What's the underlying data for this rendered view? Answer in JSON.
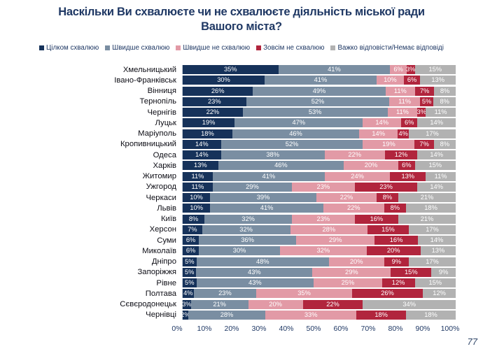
{
  "title": {
    "line1": "Наскільки Ви схвалюєте чи не схвалюєте діяльність міської ради",
    "line2": "Вашого міста?"
  },
  "page_number": "77",
  "colors": {
    "fully_approve": "#16325a",
    "rather_approve": "#7a8ea2",
    "rather_disapprove": "#e29aa6",
    "fully_disapprove": "#b1253d",
    "no_answer": "#b2b2b2",
    "title_text": "#1f3864"
  },
  "chart_data": {
    "type": "bar",
    "orientation": "horizontal",
    "stacked": true,
    "unit": "%",
    "title": "Наскільки Ви схвалюєте чи не схвалюєте діяльність міської ради Вашого міста?",
    "xlabel": "",
    "ylabel": "",
    "xlim": [
      0,
      100
    ],
    "grid": false,
    "legend_position": "top",
    "xticks": [
      "0%",
      "10%",
      "20%",
      "30%",
      "40%",
      "50%",
      "60%",
      "70%",
      "80%",
      "90%",
      "100%"
    ],
    "categories": [
      "Хмельницький",
      "Івано-Франківськ",
      "Вінниця",
      "Тернопіль",
      "Чернігів",
      "Луцьк",
      "Маріуполь",
      "Кропивницький",
      "Одеса",
      "Харків",
      "Житомир",
      "Ужгород",
      "Черкаси",
      "Львів",
      "Київ",
      "Херсон",
      "Суми",
      "Миколаїв",
      "Дніпро",
      "Запоріжжя",
      "Рівне",
      "Полтава",
      "Сєвєродонецьк",
      "Чернівці"
    ],
    "series": [
      {
        "name": "Цілком схвалюю",
        "color": "#16325a",
        "values": [
          35,
          30,
          26,
          23,
          22,
          19,
          18,
          14,
          14,
          13,
          11,
          11,
          10,
          10,
          8,
          7,
          6,
          6,
          5,
          5,
          5,
          4,
          3,
          2
        ]
      },
      {
        "name": "Швидше схвалюю",
        "color": "#7a8ea2",
        "values": [
          41,
          41,
          49,
          52,
          53,
          47,
          46,
          52,
          38,
          46,
          41,
          29,
          39,
          41,
          32,
          32,
          36,
          30,
          48,
          43,
          43,
          23,
          21,
          28
        ]
      },
      {
        "name": "Швидше не схвалюю",
        "color": "#e29aa6",
        "values": [
          6,
          10,
          11,
          11,
          11,
          14,
          14,
          19,
          22,
          20,
          24,
          23,
          22,
          22,
          23,
          28,
          29,
          32,
          20,
          29,
          25,
          35,
          20,
          33
        ]
      },
      {
        "name": "Зовсім не схвалюю",
        "color": "#b1253d",
        "values": [
          3,
          6,
          7,
          5,
          3,
          6,
          4,
          7,
          12,
          6,
          13,
          23,
          8,
          8,
          16,
          15,
          16,
          20,
          9,
          15,
          12,
          26,
          22,
          18
        ]
      },
      {
        "name": "Важко відповісти/Немає відповіді",
        "color": "#b2b2b2",
        "values": [
          15,
          13,
          8,
          8,
          11,
          14,
          17,
          8,
          14,
          15,
          11,
          14,
          21,
          18,
          21,
          17,
          14,
          13,
          17,
          9,
          15,
          12,
          34,
          18
        ]
      }
    ]
  }
}
